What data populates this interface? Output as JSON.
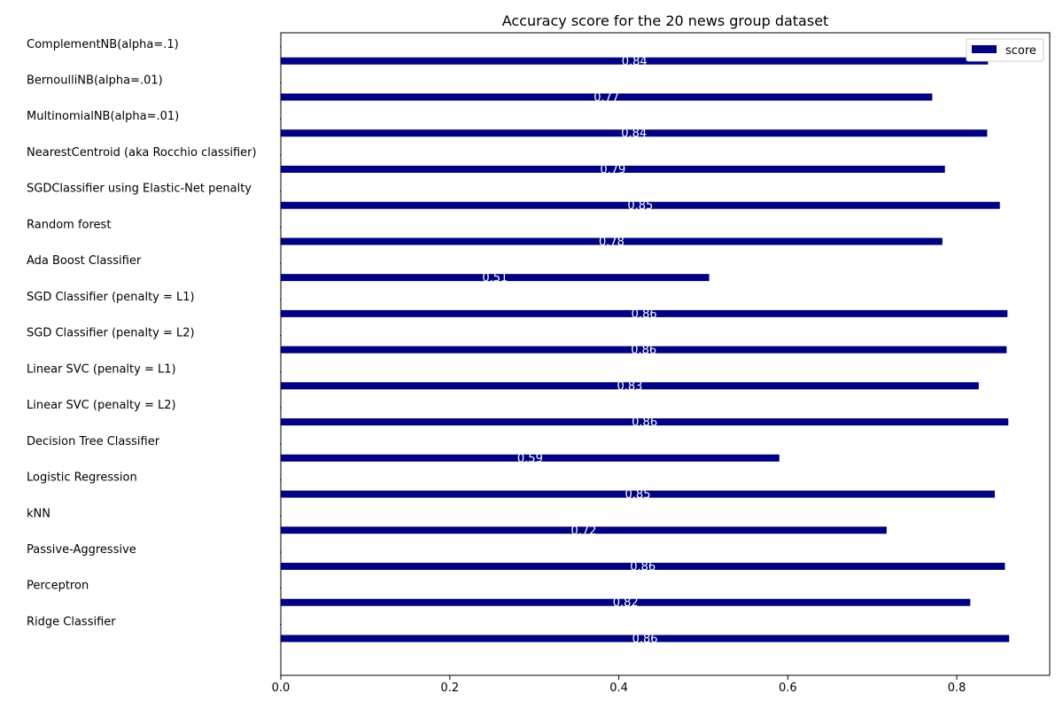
{
  "chart_data": {
    "type": "bar",
    "orientation": "horizontal",
    "title": "Accuracy score for the 20 news group dataset",
    "xlabel": "",
    "ylabel": "",
    "xlim": [
      0,
      0.91
    ],
    "xticks": [
      "0.0",
      "0.2",
      "0.4",
      "0.6",
      "0.8"
    ],
    "xtick_values": [
      0.0,
      0.2,
      0.4,
      0.6,
      0.8
    ],
    "grid": false,
    "legend": {
      "position": "top-right",
      "entries": [
        "score"
      ]
    },
    "bar_color": "#000080",
    "data_label_color": "#ffffff",
    "categories": [
      "ComplementNB(alpha=.1)",
      "BernoulliNB(alpha=.01)",
      "MultinomialNB(alpha=.01)",
      "NearestCentroid (aka Rocchio classifier)",
      "SGDClassifier using Elastic-Net penalty",
      "Random forest",
      "Ada Boost Classifier",
      "SGD Classifier (penalty = L1)",
      "SGD Classifier (penalty = L2)",
      "Linear SVC (penalty = L1)",
      "Linear SVC (penalty = L2)",
      "Decision Tree Classifier",
      "Logistic Regression",
      "kNN",
      "Passive-Aggressive",
      "Perceptron",
      "Ridge Classifier"
    ],
    "series": [
      {
        "name": "score",
        "values": [
          0.837,
          0.771,
          0.836,
          0.786,
          0.851,
          0.783,
          0.507,
          0.86,
          0.859,
          0.826,
          0.861,
          0.59,
          0.845,
          0.717,
          0.857,
          0.816,
          0.862
        ],
        "labels": [
          "0.84",
          "0.77",
          "0.84",
          "0.79",
          "0.85",
          "0.78",
          "0.51",
          "0.86",
          "0.86",
          "0.83",
          "0.86",
          "0.59",
          "0.85",
          "0.72",
          "0.86",
          "0.82",
          "0.86"
        ]
      }
    ]
  }
}
